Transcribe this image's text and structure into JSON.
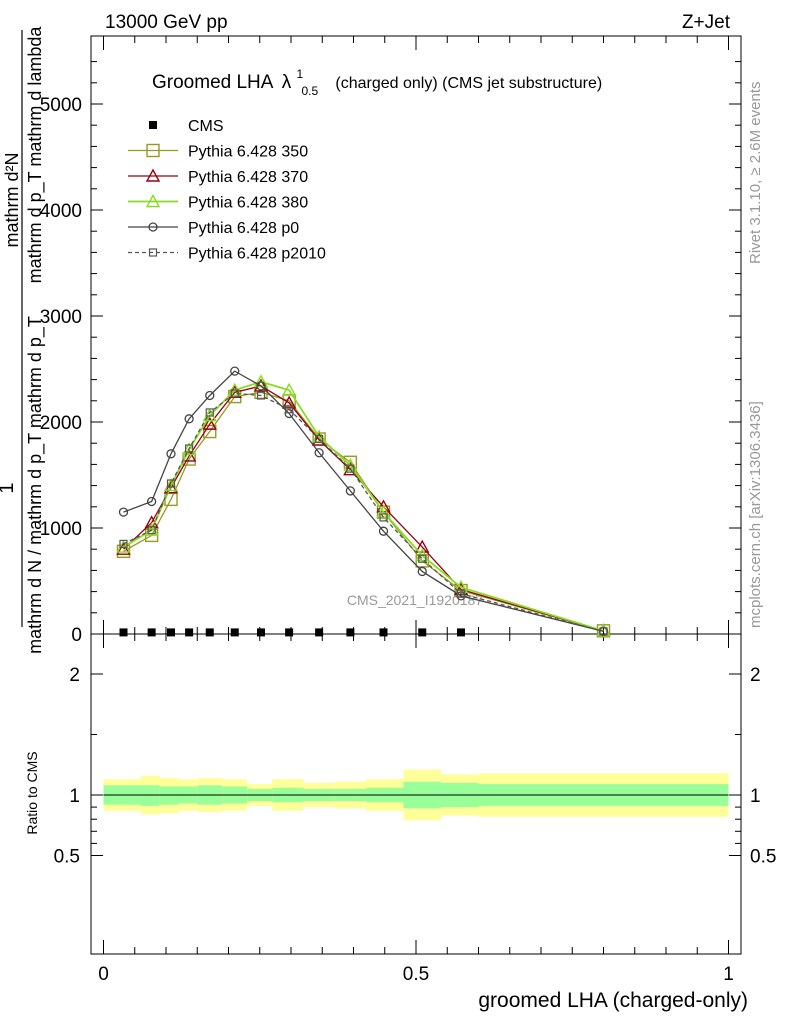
{
  "header": {
    "left": "13000 GeV pp",
    "right": "Z+Jet"
  },
  "title": {
    "main": "Groomed LHA",
    "symbol": "λ",
    "sup": "1",
    "sub": "0.5",
    "rest": "(charged only) (CMS jet substructure)"
  },
  "side_labels": {
    "rivet": "Rivet 3.1.10, ≥ 2.6M events",
    "mcplots": "mcplots.cern.ch [arXiv:1306.3436]"
  },
  "watermark": "CMS_2021_I1920187",
  "y_label_main": {
    "one": "1",
    "numerator": "mathrm d²N",
    "denominator_upper": "mathrm d p_T mathrm d lambda",
    "fraction": "mathrm d N / mathrm d p_T",
    "denominator_lower": "mathrm d N / mathrm d p_T mathrm d p_T"
  },
  "y_label_ratio": "Ratio to CMS",
  "x_label": "groomed LHA (charged-only)",
  "colors": {
    "p350": "#999922",
    "p370": "#990011",
    "p380": "#88dd22",
    "p0": "#444444",
    "p2010": "#555555",
    "band_inner": "#99ff99",
    "band_outer": "#ffff99"
  },
  "chart_data": [
    {
      "type": "line",
      "panel": "main",
      "xlim": [
        -0.02,
        1.02
      ],
      "ylim": [
        0,
        5600
      ],
      "yticks": [
        0,
        1000,
        2000,
        3000,
        4000,
        5000
      ],
      "ytick_labels": [
        "0",
        "1000",
        "2000",
        "3000",
        "4000",
        "5000"
      ],
      "x": [
        0.032,
        0.077,
        0.108,
        0.137,
        0.17,
        0.21,
        0.252,
        0.297,
        0.345,
        0.395,
        0.448,
        0.51,
        0.572,
        0.8
      ],
      "series": [
        {
          "name": "CMS",
          "marker": "square-filled",
          "line": "none",
          "values": [
            15,
            15,
            15,
            15,
            15,
            15,
            15,
            15,
            15,
            15,
            15,
            15,
            15,
            null
          ]
        },
        {
          "name": "Pythia 6.428 350",
          "marker": "square-open",
          "line": "solid",
          "values": [
            780,
            930,
            1270,
            1650,
            1910,
            2240,
            2280,
            2200,
            1840,
            1620,
            1150,
            690,
            410,
            30
          ]
        },
        {
          "name": "Pythia 6.428 370",
          "marker": "triangle-open",
          "line": "solid",
          "values": [
            800,
            1050,
            1380,
            1680,
            1980,
            2280,
            2340,
            2180,
            1830,
            1550,
            1200,
            820,
            420,
            30
          ]
        },
        {
          "name": "Pythia 6.428 380",
          "marker": "triangle-open",
          "line": "solid",
          "values": [
            820,
            980,
            1400,
            1740,
            2060,
            2300,
            2380,
            2300,
            1860,
            1590,
            1150,
            740,
            440,
            30
          ]
        },
        {
          "name": "Pythia 6.428 p0",
          "marker": "circle-open",
          "line": "solid",
          "values": [
            1150,
            1250,
            1700,
            2030,
            2250,
            2480,
            2340,
            2080,
            1710,
            1350,
            970,
            590,
            360,
            25
          ]
        },
        {
          "name": "Pythia 6.428 p2010",
          "marker": "square-open-small",
          "line": "dashed",
          "values": [
            850,
            980,
            1420,
            1750,
            2090,
            2270,
            2250,
            2120,
            1840,
            1560,
            1100,
            710,
            380,
            25
          ]
        }
      ]
    },
    {
      "type": "area",
      "panel": "ratio",
      "xlim": [
        -0.02,
        1.02
      ],
      "ylim": [
        0.35,
        2.25
      ],
      "yticks": [
        0.5,
        1,
        2
      ],
      "ytick_labels": [
        "0.5",
        "1",
        "2"
      ],
      "xticks": [
        0,
        0.5,
        1
      ],
      "xtick_labels": [
        "0",
        "0.5",
        "1"
      ],
      "bin_edges": [
        0,
        0.06,
        0.09,
        0.12,
        0.15,
        0.19,
        0.23,
        0.27,
        0.32,
        0.37,
        0.42,
        0.48,
        0.54,
        0.6,
        1.0
      ],
      "inner_band": {
        "low": [
          0.92,
          0.91,
          0.92,
          0.93,
          0.92,
          0.93,
          0.95,
          0.94,
          0.95,
          0.95,
          0.94,
          0.89,
          0.9,
          0.91
        ],
        "high": [
          1.08,
          1.08,
          1.07,
          1.07,
          1.08,
          1.07,
          1.05,
          1.06,
          1.05,
          1.05,
          1.06,
          1.11,
          1.1,
          1.09
        ]
      },
      "outer_band": {
        "low": [
          0.87,
          0.84,
          0.85,
          0.87,
          0.86,
          0.87,
          0.91,
          0.87,
          0.9,
          0.89,
          0.87,
          0.79,
          0.83,
          0.82
        ],
        "high": [
          1.13,
          1.16,
          1.14,
          1.13,
          1.14,
          1.13,
          1.09,
          1.13,
          1.1,
          1.11,
          1.13,
          1.21,
          1.17,
          1.18
        ]
      },
      "reference_line": 1.0
    }
  ]
}
